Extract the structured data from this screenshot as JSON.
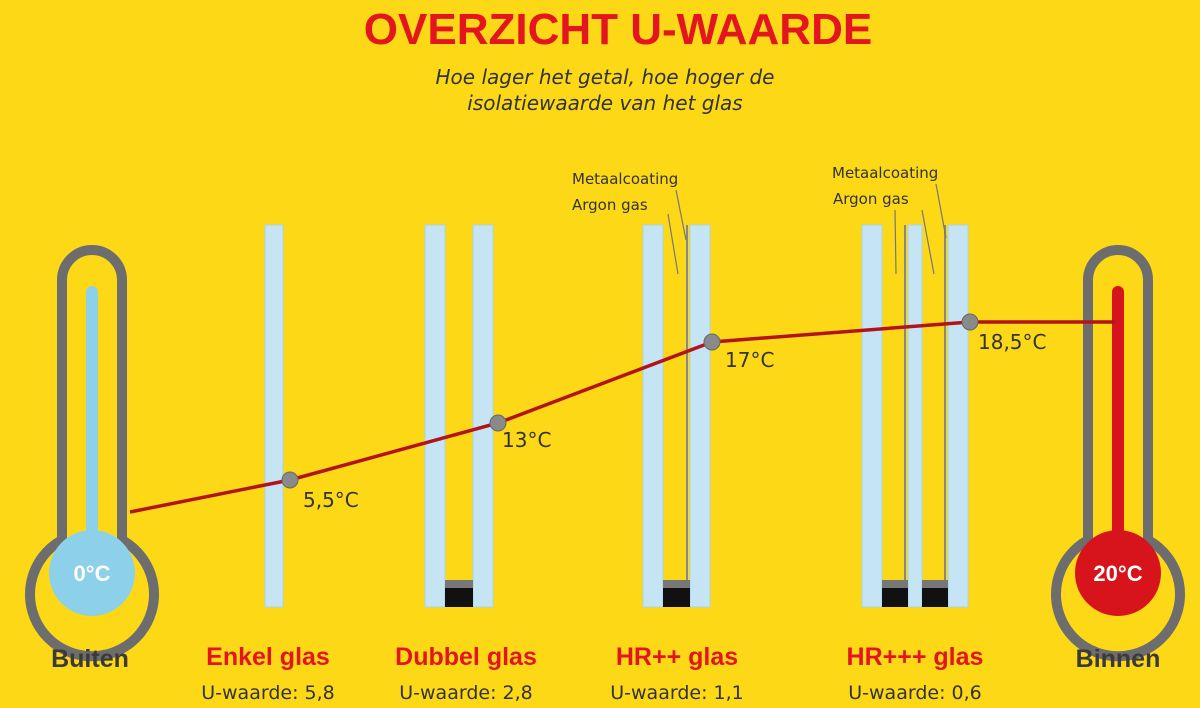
{
  "header": {
    "title": "OVERZICHT U-WAARDE",
    "subtitle": [
      "Hoe lager het getal, hoe hoger de",
      "isolatiewaarde van het glas"
    ]
  },
  "outside": {
    "temperature": "0°C",
    "label": "Buiten"
  },
  "inside": {
    "temperature": "20°C",
    "label": "Binnen"
  },
  "glasses": [
    {
      "name": "Enkel glas",
      "u_value": "U-waarde: 5,8",
      "temperature": "5,5°C"
    },
    {
      "name": "Dubbel glas",
      "u_value": "U-waarde: 2,8",
      "temperature": "13°C"
    },
    {
      "name": "HR++ glas",
      "u_value": "U-waarde: 1,1",
      "temperature": "17°C",
      "annotations": [
        "Metaalcoating",
        "Argon gas"
      ]
    },
    {
      "name": "HR+++ glas",
      "u_value": "U-waarde: 0,6",
      "temperature": "18,5°C",
      "annotations": [
        "Metaalcoating",
        "Argon gas"
      ]
    }
  ]
}
